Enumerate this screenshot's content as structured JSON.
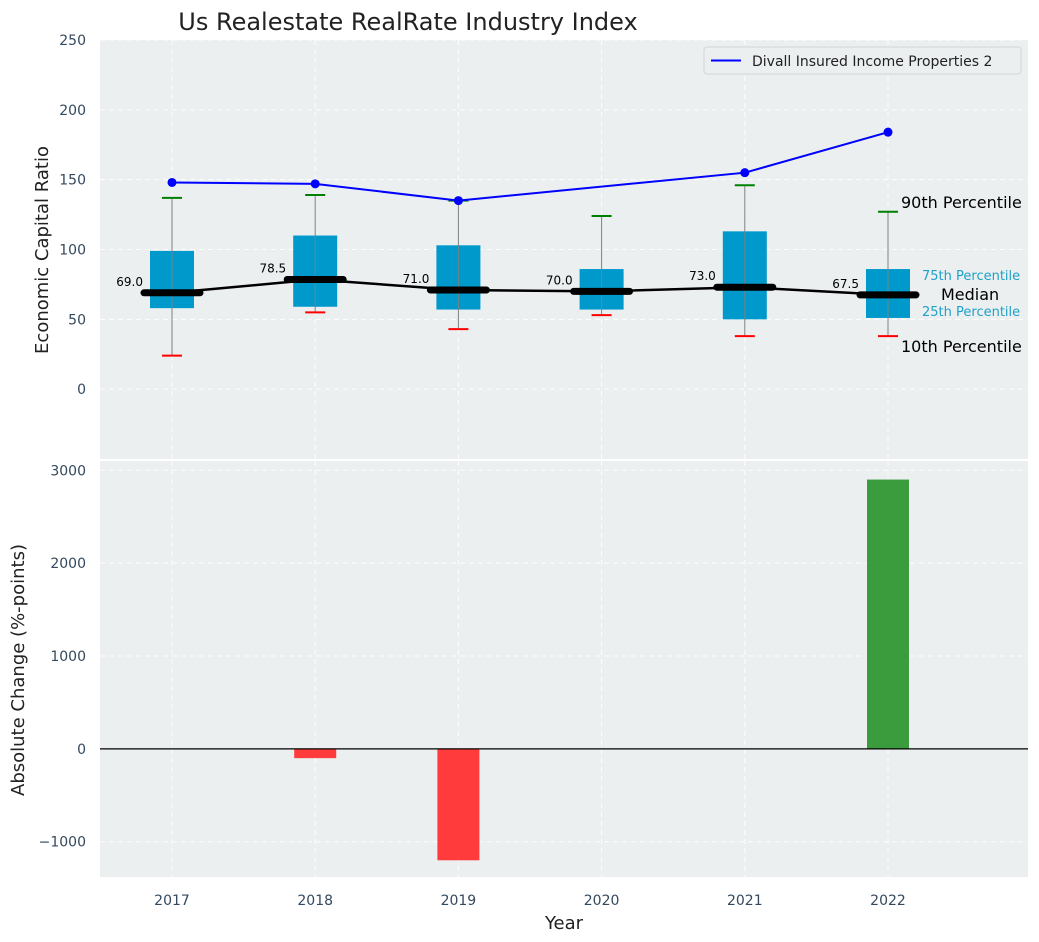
{
  "chart_data": [
    {
      "type": "box",
      "title": "Us Realestate RealRate Industry Index",
      "ylabel": "Economic Capital Ratio",
      "xlabel": "",
      "ylim": [
        -50,
        250
      ],
      "yticks": [
        0,
        50,
        100,
        150,
        200,
        250
      ],
      "categories": [
        "2017",
        "2018",
        "2019",
        "2020",
        "2021",
        "2022"
      ],
      "grid": true,
      "boxes": [
        {
          "year": "2017",
          "p10": 24,
          "p25": 58,
          "median": 69.0,
          "p75": 99,
          "p90": 137,
          "median_label": "69.0"
        },
        {
          "year": "2018",
          "p10": 55,
          "p25": 59,
          "median": 78.5,
          "p75": 110,
          "p90": 139,
          "median_label": "78.5"
        },
        {
          "year": "2019",
          "p10": 43,
          "p25": 57,
          "median": 71.0,
          "p75": 103,
          "p90": 135,
          "median_label": "71.0"
        },
        {
          "year": "2020",
          "p10": 53,
          "p25": 57,
          "median": 70.0,
          "p75": 86,
          "p90": 124,
          "median_label": "70.0"
        },
        {
          "year": "2021",
          "p10": 38,
          "p25": 50,
          "median": 73.0,
          "p75": 113,
          "p90": 146,
          "median_label": "73.0"
        },
        {
          "year": "2022",
          "p10": 38,
          "p25": 51,
          "median": 67.5,
          "p75": 86,
          "p90": 127,
          "median_label": "67.5"
        }
      ],
      "series": [
        {
          "name": "Divall Insured Income Properties 2",
          "color": "#0000ff",
          "points": [
            {
              "x": "2017",
              "y": 148
            },
            {
              "x": "2018",
              "y": 147
            },
            {
              "x": "2019",
              "y": 135
            },
            {
              "x": "2021",
              "y": 155
            },
            {
              "x": "2022",
              "y": 184
            }
          ]
        }
      ],
      "legend": {
        "position": "top-right",
        "entries": [
          "Divall Insured Income Properties 2"
        ]
      },
      "annotations": {
        "p90": "90th Percentile",
        "p75": "75th Percentile",
        "median": "Median",
        "p25": "25th Percentile",
        "p10": "10th Percentile"
      },
      "colors": {
        "box": "#0099cc",
        "median_line": "#000000",
        "whisker": "#808080",
        "p90_cap": "#008000",
        "p10_cap": "#ff0000",
        "background": "#ebeff0"
      }
    },
    {
      "type": "bar",
      "ylabel": "Absolute Change (%-points)",
      "xlabel": "Year",
      "categories": [
        "2017",
        "2018",
        "2019",
        "2020",
        "2021",
        "2022"
      ],
      "values": [
        0,
        -100,
        -1200,
        0,
        0,
        2900
      ],
      "ylim": [
        -1380,
        3100
      ],
      "yticks": [
        -1000,
        0,
        1000,
        2000,
        3000
      ],
      "ytick_labels": [
        "−1000",
        "0",
        "1000",
        "2000",
        "3000"
      ],
      "grid": true,
      "colors": {
        "positive": "#3a9c3c",
        "negative": "#ff3b3b",
        "zero_line": "#000000"
      }
    }
  ]
}
